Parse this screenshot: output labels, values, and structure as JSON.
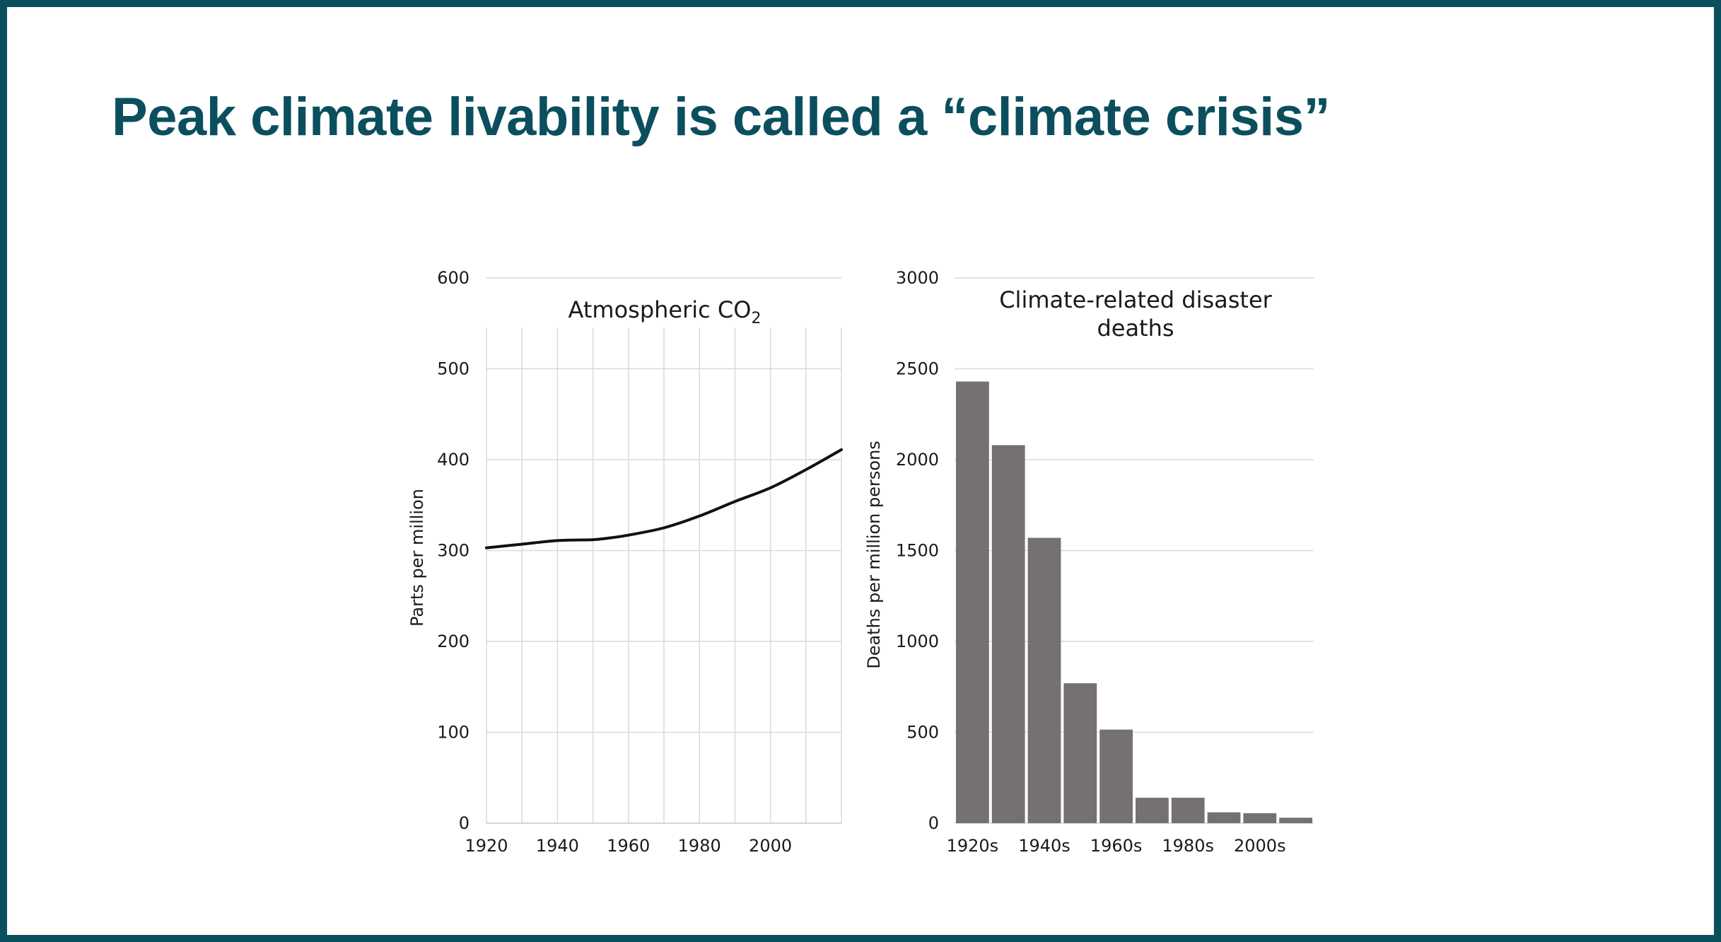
{
  "slide": {
    "title": "Peak climate livability is called a “climate crisis”"
  },
  "colors": {
    "frame": "#0b4f5e",
    "title": "#0b4f5e",
    "line": "#111111",
    "bars": "#767171",
    "grid": "#d9d9d9"
  },
  "chart_data": [
    {
      "type": "line",
      "title": "Atmospheric CO",
      "title_subscript": "2",
      "xlabel": "",
      "ylabel": "Parts per million",
      "xlim": [
        1920,
        2020
      ],
      "ylim": [
        0,
        600
      ],
      "x_ticks": [
        1920,
        1940,
        1960,
        1980,
        2000
      ],
      "y_ticks": [
        0,
        100,
        200,
        300,
        400,
        500,
        600
      ],
      "x_gridlines": [
        1920,
        1930,
        1940,
        1950,
        1960,
        1970,
        1980,
        1990,
        2000,
        2010,
        2020
      ],
      "grid": true,
      "series": [
        {
          "name": "CO2",
          "x": [
            1920,
            1930,
            1940,
            1950,
            1955,
            1960,
            1970,
            1980,
            1990,
            2000,
            2010,
            2020
          ],
          "y": [
            303,
            307,
            311,
            312,
            314,
            317,
            325,
            338,
            354,
            369,
            389,
            411
          ]
        }
      ]
    },
    {
      "type": "bar",
      "title": "Climate-related disaster deaths",
      "xlabel": "",
      "ylabel": "Deaths per million persons",
      "ylim": [
        0,
        3000
      ],
      "y_ticks": [
        0,
        500,
        1000,
        1500,
        2000,
        2500,
        3000
      ],
      "grid": true,
      "categories": [
        "1920s",
        "1930s",
        "1940s",
        "1950s",
        "1960s",
        "1970s",
        "1980s",
        "1990s",
        "2000s",
        "2010s"
      ],
      "category_labels_shown": [
        "1920s",
        "1940s",
        "1960s",
        "1980s",
        "2000s"
      ],
      "values": [
        2430,
        2080,
        1570,
        770,
        515,
        140,
        140,
        60,
        55,
        30
      ]
    }
  ]
}
